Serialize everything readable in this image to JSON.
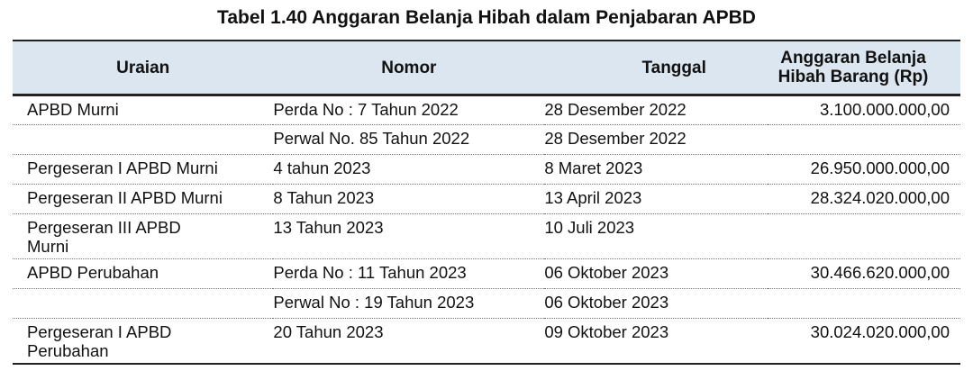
{
  "title": "Tabel 1.40 Anggaran Belanja Hibah dalam Penjabaran APBD",
  "columns": [
    "Uraian",
    "Nomor",
    "Tanggal",
    "Anggaran Belanja Hibah Barang (Rp)"
  ],
  "rows": [
    {
      "uraian": "APBD Murni",
      "nomor": "Perda No : 7 Tahun 2022",
      "tanggal": "28 Desember 2022",
      "anggaran": "3.100.000.000,00"
    },
    {
      "uraian": "",
      "nomor": "Perwal No. 85 Tahun 2022",
      "tanggal": "28 Desember 2022",
      "anggaran": ""
    },
    {
      "uraian": "Pergeseran I APBD Murni",
      "nomor": "4 tahun 2023",
      "tanggal": "8 Maret 2023",
      "anggaran": "26.950.000.000,00"
    },
    {
      "uraian": "Pergeseran II APBD Murni",
      "nomor": "8 Tahun 2023",
      "tanggal": "13 April 2023",
      "anggaran": "28.324.020.000,00"
    },
    {
      "uraian": "Pergeseran III APBD Murni",
      "nomor": "13 Tahun 2023",
      "tanggal": "10 Juli 2023",
      "anggaran": ""
    },
    {
      "uraian": "APBD Perubahan",
      "nomor": "Perda No : 11 Tahun 2023",
      "tanggal": "06 Oktober 2023",
      "anggaran": "30.466.620.000,00"
    },
    {
      "uraian": "",
      "nomor": "Perwal No : 19 Tahun 2023",
      "tanggal": "06 Oktober 2023",
      "anggaran": ""
    },
    {
      "uraian": "Pergeseran I APBD Perubahan",
      "nomor": "20 Tahun 2023",
      "tanggal": "09 Oktober 2023",
      "anggaran": "30.024.020.000,00"
    }
  ]
}
